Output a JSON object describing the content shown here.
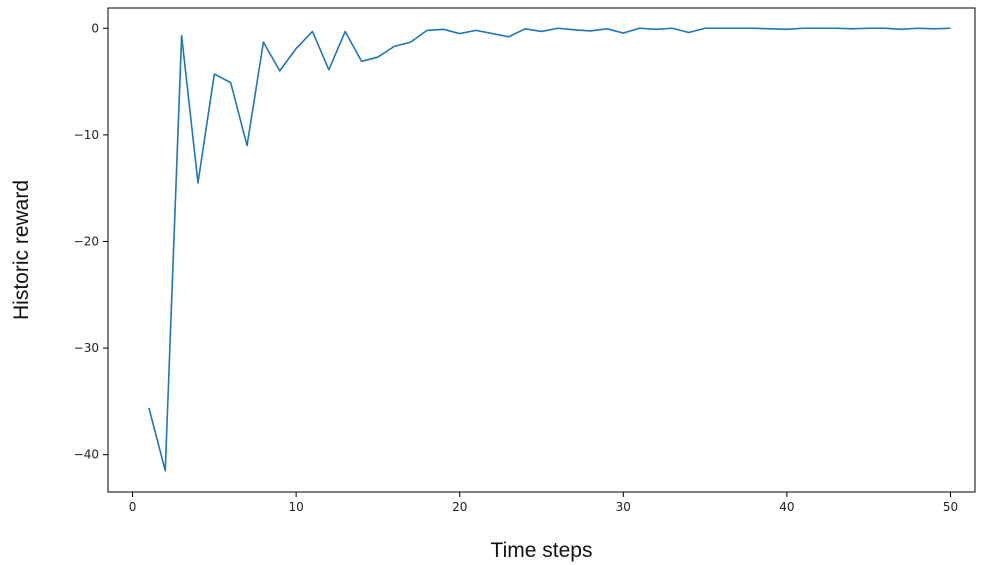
{
  "chart_data": {
    "type": "line",
    "title": "",
    "xlabel": "Time steps",
    "ylabel": "Historic reward",
    "xlim": [
      -1.5,
      51.5
    ],
    "ylim": [
      -43.5,
      1.9
    ],
    "x_ticks": [
      0,
      10,
      20,
      30,
      40,
      50
    ],
    "y_ticks": [
      0,
      -10,
      -20,
      -30,
      -40
    ],
    "x_tick_labels": [
      "0",
      "10",
      "20",
      "30",
      "40",
      "50"
    ],
    "y_tick_labels": [
      "0",
      "−10",
      "−20",
      "−30",
      "−40"
    ],
    "grid": false,
    "legend": "none",
    "line_color": "#1f77b4",
    "series": [
      {
        "x": [
          1,
          2,
          3,
          4,
          5,
          6,
          7,
          8,
          9,
          10,
          11,
          12,
          13,
          14,
          15,
          16,
          17,
          18,
          19,
          20,
          21,
          22,
          23,
          24,
          25,
          26,
          27,
          28,
          29,
          30,
          31,
          32,
          33,
          34,
          35,
          36,
          37,
          38,
          39,
          40,
          41,
          42,
          43,
          44,
          45,
          46,
          47,
          48,
          49,
          50
        ],
        "values": [
          -35.6,
          -41.5,
          -0.7,
          -14.5,
          -4.3,
          -5.1,
          -11.0,
          -1.3,
          -4.0,
          -1.9,
          -0.3,
          -3.9,
          -0.3,
          -3.1,
          -2.7,
          -1.7,
          -1.3,
          -0.2,
          -0.1,
          -0.5,
          -0.2,
          -0.5,
          -0.8,
          -0.05,
          -0.3,
          0.0,
          -0.15,
          -0.25,
          -0.05,
          -0.45,
          0.0,
          -0.1,
          0.0,
          -0.4,
          0.0,
          0.0,
          0.0,
          0.0,
          -0.05,
          -0.1,
          0.0,
          0.0,
          0.0,
          -0.05,
          0.0,
          0.0,
          -0.1,
          0.0,
          -0.05,
          0.0
        ]
      }
    ]
  }
}
